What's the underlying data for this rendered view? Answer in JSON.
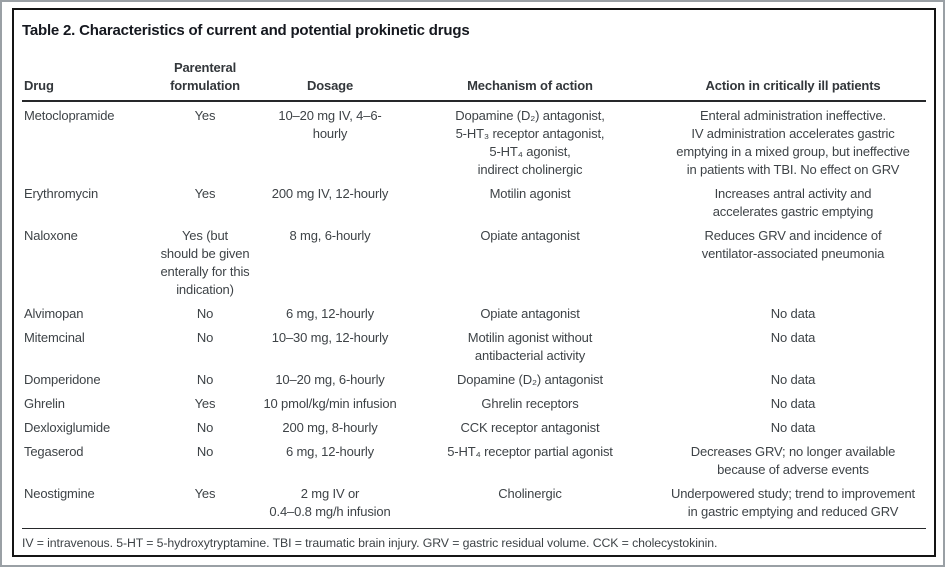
{
  "table": {
    "title": "Table 2. Characteristics of current and potential prokinetic drugs",
    "columns": [
      "Drug",
      "Parenteral\nformulation",
      "Dosage",
      "Mechanism of action",
      "Action in critically ill patients"
    ],
    "rows": [
      {
        "drug": "Metoclopramide",
        "parenteral": "Yes",
        "dosage": "10–20 mg IV, 4–6-hourly",
        "mechanism": "Dopamine (D₂) antagonist,\n5-HT₃ receptor antagonist,\n5-HT₄ agonist,\nindirect cholinergic",
        "action": "Enteral administration ineffective.\nIV administration accelerates gastric\nemptying in a mixed group, but ineffective\nin patients with TBI. No effect on GRV"
      },
      {
        "drug": "Erythromycin",
        "parenteral": "Yes",
        "dosage": "200 mg IV, 12-hourly",
        "mechanism": "Motilin agonist",
        "action": "Increases antral activity and\naccelerates gastric emptying"
      },
      {
        "drug": "Naloxone",
        "parenteral": "Yes (but\nshould be given\nenterally for this\nindication)",
        "dosage": "8 mg, 6-hourly",
        "mechanism": "Opiate antagonist",
        "action": "Reduces GRV and incidence of\nventilator-associated pneumonia"
      },
      {
        "drug": "Alvimopan",
        "parenteral": "No",
        "dosage": "6 mg, 12-hourly",
        "mechanism": "Opiate antagonist",
        "action": "No data"
      },
      {
        "drug": "Mitemcinal",
        "parenteral": "No",
        "dosage": "10–30 mg, 12-hourly",
        "mechanism": "Motilin agonist without\nantibacterial activity",
        "action": "No data"
      },
      {
        "drug": "Domperidone",
        "parenteral": "No",
        "dosage": "10–20 mg, 6-hourly",
        "mechanism": "Dopamine (D₂) antagonist",
        "action": "No data"
      },
      {
        "drug": "Ghrelin",
        "parenteral": "Yes",
        "dosage": "10 pmol/kg/min infusion",
        "mechanism": "Ghrelin receptors",
        "action": "No data"
      },
      {
        "drug": "Dexloxiglumide",
        "parenteral": "No",
        "dosage": "200 mg, 8-hourly",
        "mechanism": "CCK receptor antagonist",
        "action": "No data"
      },
      {
        "drug": "Tegaserod",
        "parenteral": "No",
        "dosage": "6 mg, 12-hourly",
        "mechanism": "5-HT₄ receptor partial agonist",
        "action": "Decreases GRV; no longer available\nbecause of adverse events"
      },
      {
        "drug": "Neostigmine",
        "parenteral": "Yes",
        "dosage": "2 mg IV or\n0.4–0.8 mg/h infusion",
        "mechanism": "Cholinergic",
        "action": "Underpowered study; trend to improvement\nin gastric emptying and reduced GRV"
      }
    ],
    "footnote": "IV = intravenous. 5-HT = 5-hydroxytryptamine. TBI = traumatic brain injury. GRV = gastric residual volume. CCK = cholecystokinin."
  },
  "colors": {
    "outer_frame": "#9aa0a5",
    "inner_border": "#141414",
    "title_text": "#15181f",
    "body_text": "#3e4347",
    "rule": "#26282a"
  }
}
